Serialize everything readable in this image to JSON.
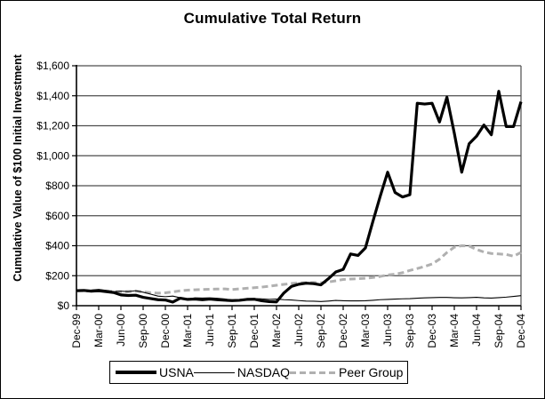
{
  "chart_data": {
    "type": "line",
    "title": "Cumulative Total Return",
    "ylabel": "Cumulative Value of $100 Initial Investment",
    "xlabel": "",
    "ylim": [
      0,
      1600
    ],
    "grid": "horizontal",
    "legend_position": "bottom",
    "x_frequency": "monthly",
    "x_range": [
      "Dec-99",
      "Dec-04"
    ],
    "x_tick_labels": [
      "Dec-99",
      "Mar-00",
      "Jun-00",
      "Sep-00",
      "Dec-00",
      "Mar-01",
      "Jun-01",
      "Sep-01",
      "Dec-01",
      "Mar-02",
      "Jun-02",
      "Sep-02",
      "Dec-02",
      "Mar-03",
      "Jun-03",
      "Sep-03",
      "Dec-03",
      "Mar-04",
      "Jun-04",
      "Sep-04",
      "Dec-04"
    ],
    "y_ticks": [
      {
        "value": 0,
        "label": "$0"
      },
      {
        "value": 200,
        "label": "$200"
      },
      {
        "value": 400,
        "label": "$400"
      },
      {
        "value": 600,
        "label": "$600"
      },
      {
        "value": 800,
        "label": "$800"
      },
      {
        "value": 1000,
        "label": "$1,000"
      },
      {
        "value": 1200,
        "label": "$1,200"
      },
      {
        "value": 1400,
        "label": "$1,400"
      },
      {
        "value": 1600,
        "label": "$1,600"
      }
    ],
    "series": [
      {
        "name": "USNA",
        "color": "#000000",
        "stroke_width": 3.2,
        "dash": null,
        "values": [
          100,
          102,
          97,
          100,
          94,
          88,
          72,
          68,
          70,
          56,
          48,
          40,
          38,
          24,
          50,
          42,
          44,
          40,
          44,
          40,
          37,
          34,
          36,
          42,
          43,
          33,
          27,
          25,
          85,
          128,
          143,
          150,
          147,
          139,
          180,
          225,
          242,
          345,
          335,
          385,
          560,
          730,
          890,
          755,
          725,
          740,
          1350,
          1345,
          1350,
          1225,
          1390,
          1150,
          890,
          1080,
          1130,
          1205,
          1140,
          1430,
          1195,
          1195,
          1360
        ]
      },
      {
        "name": "NASDAQ",
        "color": "#000000",
        "stroke_width": 1.1,
        "dash": null,
        "values": [
          100,
          97,
          104,
          109,
          102,
          93,
          97,
          94,
          100,
          90,
          77,
          64,
          60,
          64,
          53,
          45,
          52,
          51,
          52,
          49,
          45,
          36,
          41,
          46,
          47,
          46,
          42,
          44,
          40,
          38,
          34,
          31,
          30,
          28,
          31,
          35,
          33,
          32,
          32,
          33,
          36,
          40,
          42,
          44,
          46,
          47,
          50,
          52,
          54,
          55,
          55,
          53,
          52,
          54,
          56,
          52,
          51,
          54,
          57,
          62,
          67
        ]
      },
      {
        "name": "Peer Group",
        "color": "#b0b0b0",
        "stroke_width": 3,
        "dash": "7,4",
        "values": [
          100,
          99,
          97,
          100,
          98,
          95,
          93,
          95,
          97,
          92,
          87,
          84,
          86,
          92,
          99,
          104,
          106,
          108,
          110,
          111,
          112,
          108,
          112,
          116,
          120,
          124,
          130,
          136,
          142,
          148,
          152,
          153,
          155,
          153,
          158,
          166,
          175,
          178,
          180,
          183,
          188,
          195,
          205,
          210,
          220,
          235,
          248,
          262,
          278,
          310,
          355,
          390,
          400,
          398,
          375,
          358,
          348,
          345,
          342,
          330,
          355
        ]
      }
    ],
    "colors": {
      "axis": "#000000",
      "gridline": "#4d4d4d",
      "peer_gray": "#b0b0b0",
      "background": "#ffffff"
    }
  }
}
